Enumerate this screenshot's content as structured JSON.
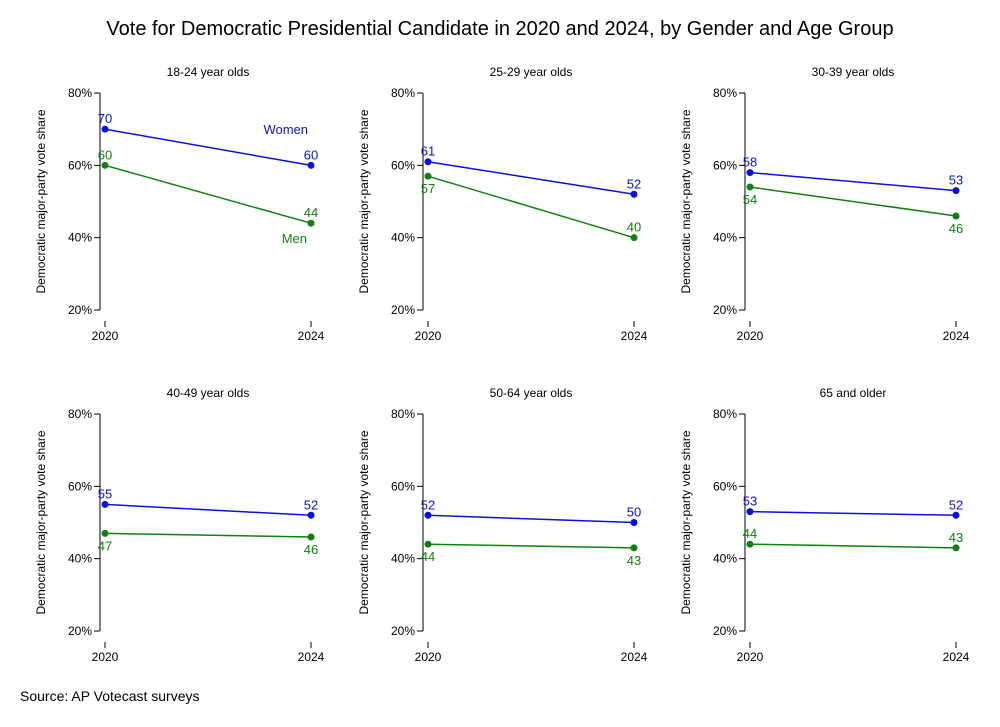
{
  "title": "Vote for Democratic Presidential Candidate in 2020 and 2024, by Gender and Age Group",
  "source": "Source: AP Votecast surveys",
  "colors": {
    "women": "#0a12d9",
    "men": "#118010",
    "axis": "#000000"
  },
  "chart_data": {
    "type": "line",
    "ylabel": "Democratic major-party vote share",
    "ylim": [
      20,
      80
    ],
    "yticks": [
      20,
      40,
      60,
      80
    ],
    "ytick_labels": [
      "20%",
      "40%",
      "60%",
      "80%"
    ],
    "x": [
      "2020",
      "2024"
    ],
    "series_names": [
      "Women",
      "Men"
    ],
    "panels": [
      {
        "title": "18-24 year olds",
        "women": [
          70,
          60
        ],
        "men": [
          60,
          44
        ],
        "show_legend": true
      },
      {
        "title": "25-29 year olds",
        "women": [
          61,
          52
        ],
        "men": [
          57,
          40
        ],
        "show_legend": false
      },
      {
        "title": "30-39 year olds",
        "women": [
          58,
          53
        ],
        "men": [
          54,
          46
        ],
        "show_legend": false
      },
      {
        "title": "40-49 year olds",
        "women": [
          55,
          52
        ],
        "men": [
          47,
          46
        ],
        "show_legend": false
      },
      {
        "title": "50-64 year olds",
        "women": [
          52,
          50
        ],
        "men": [
          44,
          43
        ],
        "show_legend": false
      },
      {
        "title": "65 and older",
        "women": [
          53,
          52
        ],
        "men": [
          44,
          43
        ],
        "show_legend": false
      }
    ]
  }
}
